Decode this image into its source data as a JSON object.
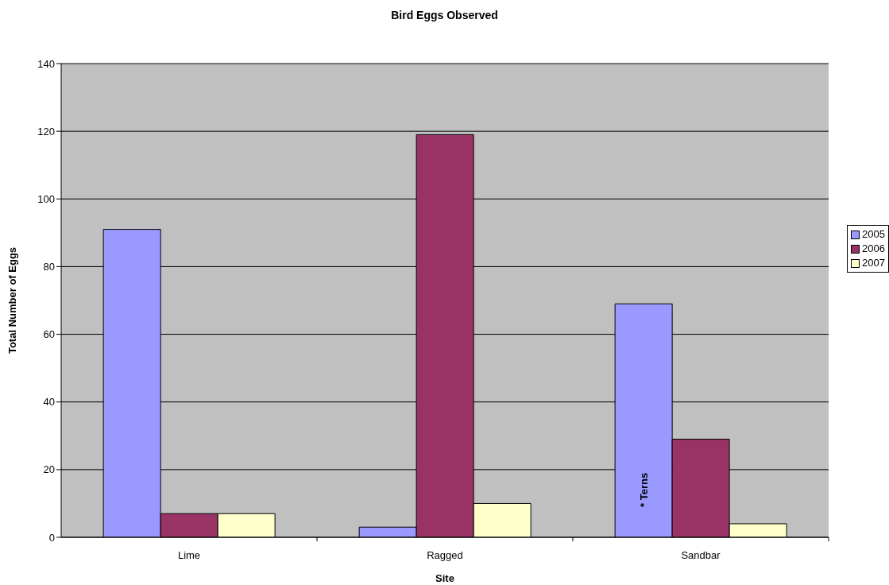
{
  "chart_data": {
    "type": "bar",
    "title": "Bird Eggs Observed",
    "xlabel": "Site",
    "ylabel": "Total Number of Eggs",
    "categories": [
      "Lime",
      "Ragged",
      "Sandbar"
    ],
    "series": [
      {
        "name": "2005",
        "color": "#9999ff",
        "values": [
          91,
          3,
          69
        ]
      },
      {
        "name": "2006",
        "color": "#993366",
        "values": [
          7,
          119,
          29
        ]
      },
      {
        "name": "2007",
        "color": "#ffffcc",
        "values": [
          7,
          10,
          4
        ]
      }
    ],
    "ylim": [
      0,
      140
    ],
    "yticks": [
      0,
      20,
      40,
      60,
      80,
      100,
      120,
      140
    ],
    "grid": "y",
    "legend": "right",
    "annotations": [
      "* Terns"
    ]
  }
}
